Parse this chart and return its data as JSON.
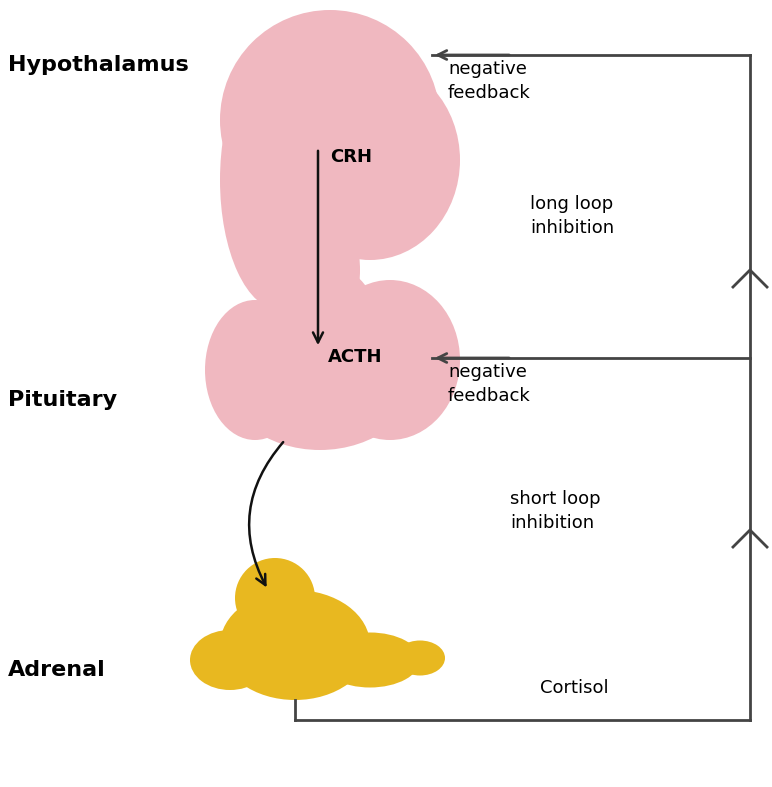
{
  "bg_color": "#ffffff",
  "hypothalamus_label": "Hypothalamus",
  "pituitary_label": "Pituitary",
  "adrenal_label": "Adrenal",
  "crh_label": "CRH",
  "acth_label": "ACTH",
  "cortisol_label": "Cortisol",
  "neg_feedback_top": "negative\nfeedback",
  "long_loop": "long loop\ninhibition",
  "neg_feedback_mid": "negative\nfeedback",
  "short_loop": "short loop\ninhibition",
  "pituitary_color": "#f0b8c0",
  "adrenal_color": "#e8b820",
  "line_color": "#444444",
  "text_color": "#000000",
  "arrow_color": "#111111",
  "figsize": [
    7.72,
    7.87
  ],
  "dpi": 100,
  "fs_bold": 16,
  "fs_text": 13
}
